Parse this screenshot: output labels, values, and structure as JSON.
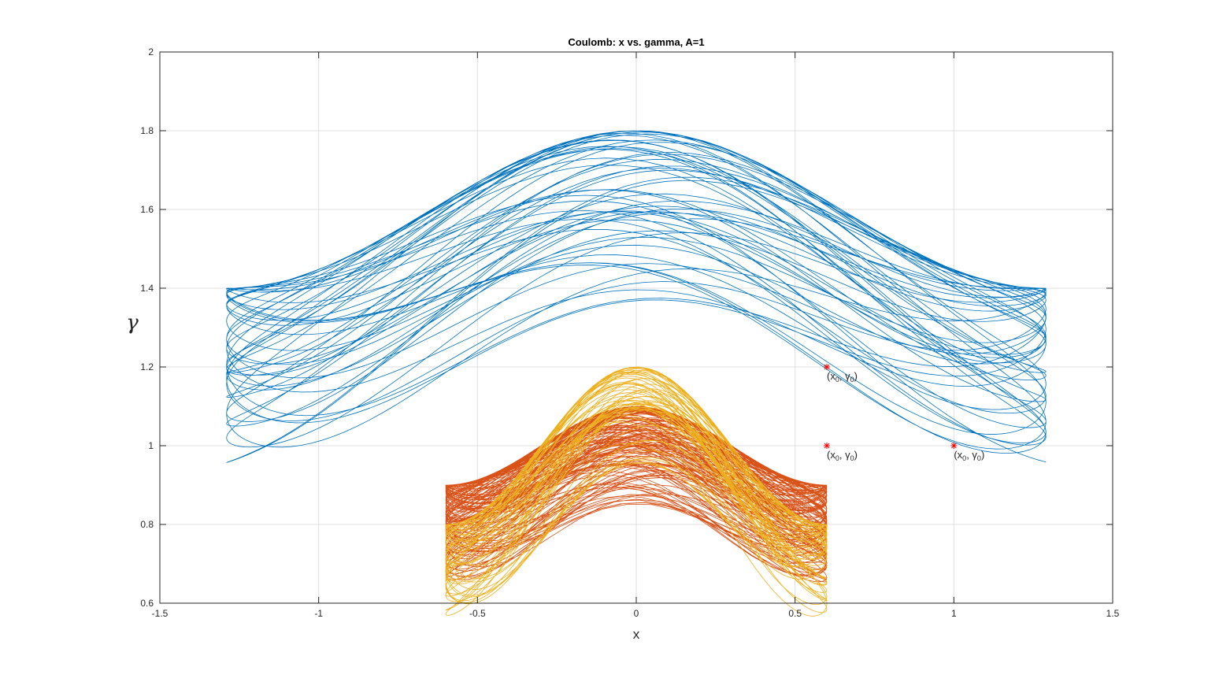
{
  "chart_data": {
    "type": "line",
    "title": "Coulomb: x vs. gamma, A=1",
    "xlabel": "x",
    "ylabel": "γ",
    "xlim": [
      -1.5,
      1.5
    ],
    "ylim": [
      0.6,
      2.0
    ],
    "xticks": [
      "-1.5",
      "-1",
      "-0.5",
      "0",
      "0.5",
      "1",
      "1.5"
    ],
    "yticks": [
      "0.6",
      "0.8",
      "1",
      "1.2",
      "1.4",
      "1.6",
      "1.8",
      "2"
    ],
    "grid": true,
    "series": [
      {
        "color": "#0072bd",
        "x0": 1.0,
        "y0": 1.0,
        "amp_x": 1.29,
        "center_y": 1.6,
        "amp_y": 0.2,
        "inner_r": 0.39,
        "outer_r": 0.81,
        "sx": 0.205,
        "sy": 0.11,
        "lag": 0.47,
        "cycles": 28
      },
      {
        "color": "#d95319",
        "x0": 0.6,
        "y0": 1.0,
        "amp_x": 0.6,
        "center_y": 1.0,
        "amp_y": 0.1,
        "inner_r": 0.17,
        "outer_r": 0.45,
        "sx": 0.21,
        "sy": 0.07,
        "lag": 0.49,
        "cycles": 75
      },
      {
        "color": "#edb120",
        "x0": 0.6,
        "y0": 1.2,
        "amp_x": 0.6,
        "center_y": 1.0,
        "amp_y": 0.2,
        "inner_r": 0.17,
        "outer_r": 0.45,
        "sx": 0.41,
        "sy": 0.395,
        "lag": 0.47,
        "cycles": 30
      }
    ],
    "markers": [
      {
        "x": 1.0,
        "y": 1.0,
        "color": "#ff0000",
        "symbol": "*"
      },
      {
        "x": 0.6,
        "y": 1.0,
        "color": "#ff0000",
        "symbol": "*"
      },
      {
        "x": 0.6,
        "y": 1.2,
        "color": "#ff0000",
        "symbol": "*"
      }
    ],
    "annotations": [
      {
        "x": 1.0,
        "y": 1.0,
        "text": "(x0, γ0)"
      },
      {
        "x": 0.6,
        "y": 1.0,
        "text": "(x0, γ0)"
      },
      {
        "x": 0.6,
        "y": 1.2,
        "text": "(x0, γ0)"
      }
    ]
  }
}
